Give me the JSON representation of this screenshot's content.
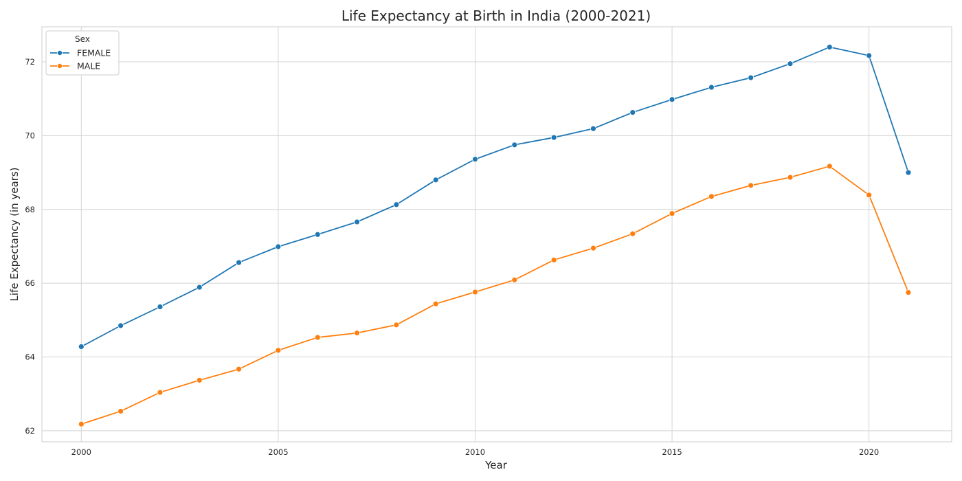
{
  "chart_data": {
    "type": "line",
    "title": "Life Expectancy at Birth in India (2000-2021)",
    "xlabel": "Year",
    "ylabel": "Life Expectancy (in years)",
    "x": [
      2000,
      2001,
      2002,
      2003,
      2004,
      2005,
      2006,
      2007,
      2008,
      2009,
      2010,
      2011,
      2012,
      2013,
      2014,
      2015,
      2016,
      2017,
      2018,
      2019,
      2020,
      2021
    ],
    "xlim": [
      1999,
      2022.1
    ],
    "ylim": [
      61.7,
      72.95
    ],
    "xticks": [
      2000,
      2005,
      2010,
      2015,
      2020
    ],
    "yticks": [
      62,
      64,
      66,
      68,
      70,
      72
    ],
    "grid": true,
    "legend": {
      "title": "Sex",
      "placement": "top-left"
    },
    "series": [
      {
        "name": "FEMALE",
        "color": "#1f77b4",
        "values": [
          64.28,
          64.85,
          65.36,
          65.89,
          66.56,
          66.99,
          67.32,
          67.66,
          68.13,
          68.8,
          69.36,
          69.75,
          69.95,
          70.19,
          70.63,
          70.98,
          71.31,
          71.57,
          71.95,
          72.4,
          72.17,
          69.0
        ]
      },
      {
        "name": "MALE",
        "color": "#ff7f0e",
        "values": [
          62.18,
          62.53,
          63.04,
          63.37,
          63.67,
          64.18,
          64.53,
          64.65,
          64.87,
          65.44,
          65.76,
          66.09,
          66.63,
          66.95,
          67.34,
          67.89,
          68.35,
          68.65,
          68.87,
          69.17,
          68.39,
          65.75
        ]
      }
    ]
  }
}
